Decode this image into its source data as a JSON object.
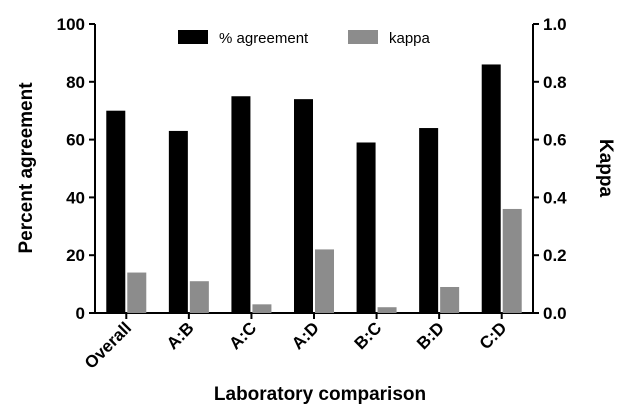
{
  "chart_data": {
    "type": "bar",
    "xlabel": "Laboratory comparison",
    "ylabel_left": "Percent agreement",
    "ylabel_right": "Kappa",
    "categories": [
      "Overall",
      "A:B",
      "A:C",
      "A:D",
      "B:C",
      "B:D",
      "C:D"
    ],
    "ylim_left": [
      0,
      100
    ],
    "ylim_right": [
      0,
      1.0
    ],
    "yticks_left": [
      "0",
      "20",
      "40",
      "60",
      "80",
      "100"
    ],
    "yticks_right": [
      "0.0",
      "0.2",
      "0.4",
      "0.6",
      "0.8",
      "1.0"
    ],
    "grid": false,
    "legend_position": "top-center",
    "series": [
      {
        "name": "% agreement",
        "axis": "left",
        "color": "#000000",
        "values": [
          70,
          63,
          75,
          74,
          59,
          64,
          86
        ]
      },
      {
        "name": "kappa",
        "axis": "right",
        "color": "#8c8c8c",
        "values": [
          0.14,
          0.11,
          0.03,
          0.22,
          0.02,
          0.09,
          0.36
        ]
      }
    ]
  }
}
